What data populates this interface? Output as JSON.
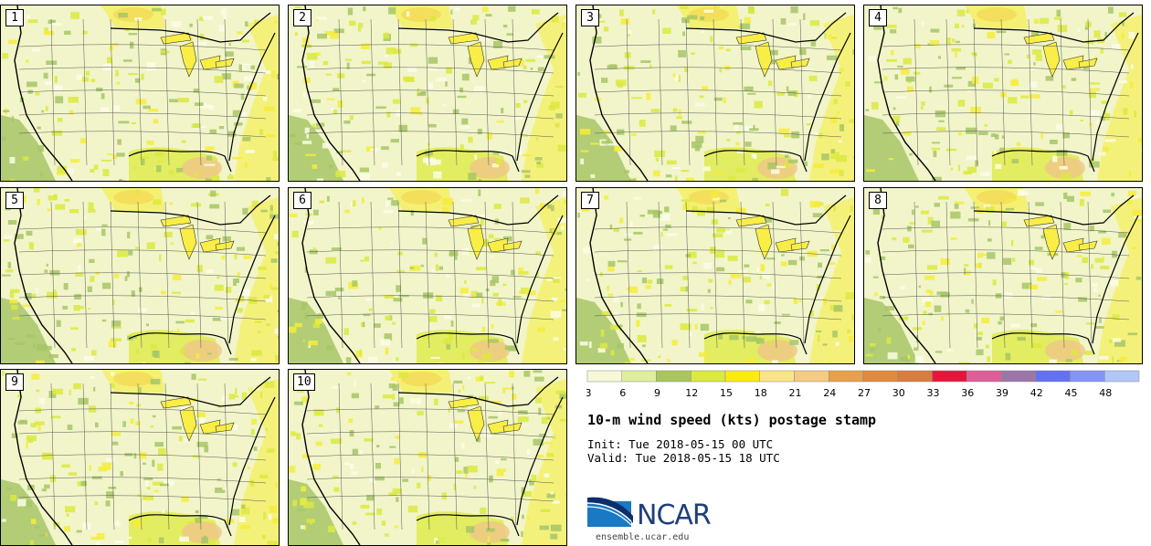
{
  "title": "10-m wind speed (kts) postage stamp",
  "init": "Init: Tue 2018-05-15 00 UTC",
  "valid": "Valid: Tue 2018-05-15 18 UTC",
  "website": "ensemble.ucar.edu",
  "logo_text": "NCAR",
  "members": [
    "1",
    "2",
    "3",
    "4",
    "5",
    "6",
    "7",
    "8",
    "9",
    "10"
  ],
  "legend": {
    "ticks": [
      "3",
      "6",
      "9",
      "12",
      "15",
      "18",
      "21",
      "24",
      "27",
      "30",
      "33",
      "36",
      "39",
      "42",
      "45",
      "48"
    ],
    "colors": [
      "#f6f8d8",
      "#dfee9d",
      "#a9c65c",
      "#dce93f",
      "#fcec0c",
      "#fbe486",
      "#f3cb82",
      "#e8a04a",
      "#e2893c",
      "#d97c3f",
      "#e8153a",
      "#df5e98",
      "#9c76a9",
      "#6271f4",
      "#8294f8",
      "#b1c7f8"
    ]
  },
  "map_colors": {
    "base": "#f1f5c9",
    "light": "#fafde6",
    "green": "#a7c567",
    "yellow": "#f6ec3a",
    "lime": "#dce93f",
    "orange": "#f0c58a",
    "water": "#f8ee46"
  }
}
